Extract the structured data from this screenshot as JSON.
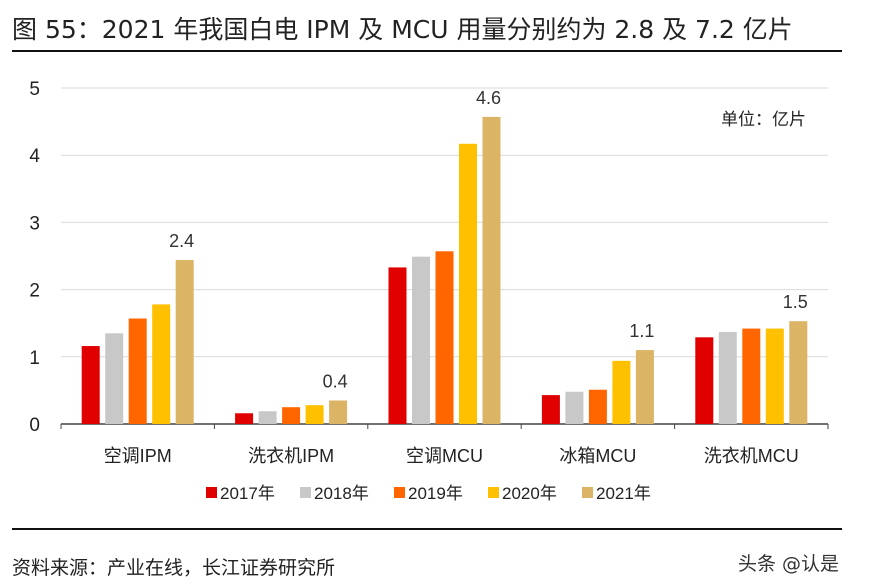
{
  "title": "图 55：2021 年我国白电 IPM 及 MCU 用量分别约为 2.8 及 7.2 亿片",
  "footer": "资料来源：产业在线，长江证券研究所",
  "watermark": "头条 @认是",
  "chart_data": {
    "type": "bar",
    "unit_label": "单位：亿片",
    "categories": [
      "空调IPM",
      "洗衣机IPM",
      "空调MCU",
      "冰箱MCU",
      "洗衣机MCU"
    ],
    "series": [
      {
        "name": "2017年",
        "color": "#e00000",
        "values": [
          1.16,
          0.16,
          2.33,
          0.43,
          1.29
        ]
      },
      {
        "name": "2018年",
        "color": "#c8c8c8",
        "values": [
          1.35,
          0.19,
          2.49,
          0.48,
          1.37
        ]
      },
      {
        "name": "2019年",
        "color": "#ff6600",
        "values": [
          1.57,
          0.25,
          2.57,
          0.51,
          1.42
        ]
      },
      {
        "name": "2020年",
        "color": "#ffc000",
        "values": [
          1.78,
          0.28,
          4.17,
          0.94,
          1.42
        ]
      },
      {
        "name": "2021年",
        "color": "#dbb466",
        "values": [
          2.44,
          0.35,
          4.57,
          1.1,
          1.53
        ]
      }
    ],
    "data_labels": [
      "2.4",
      "0.4",
      "4.6",
      "1.1",
      "1.5"
    ],
    "yticks": [
      0,
      1,
      2,
      3,
      4,
      5
    ],
    "ylim": [
      0,
      5
    ],
    "grid": true,
    "legend_position": "bottom"
  }
}
